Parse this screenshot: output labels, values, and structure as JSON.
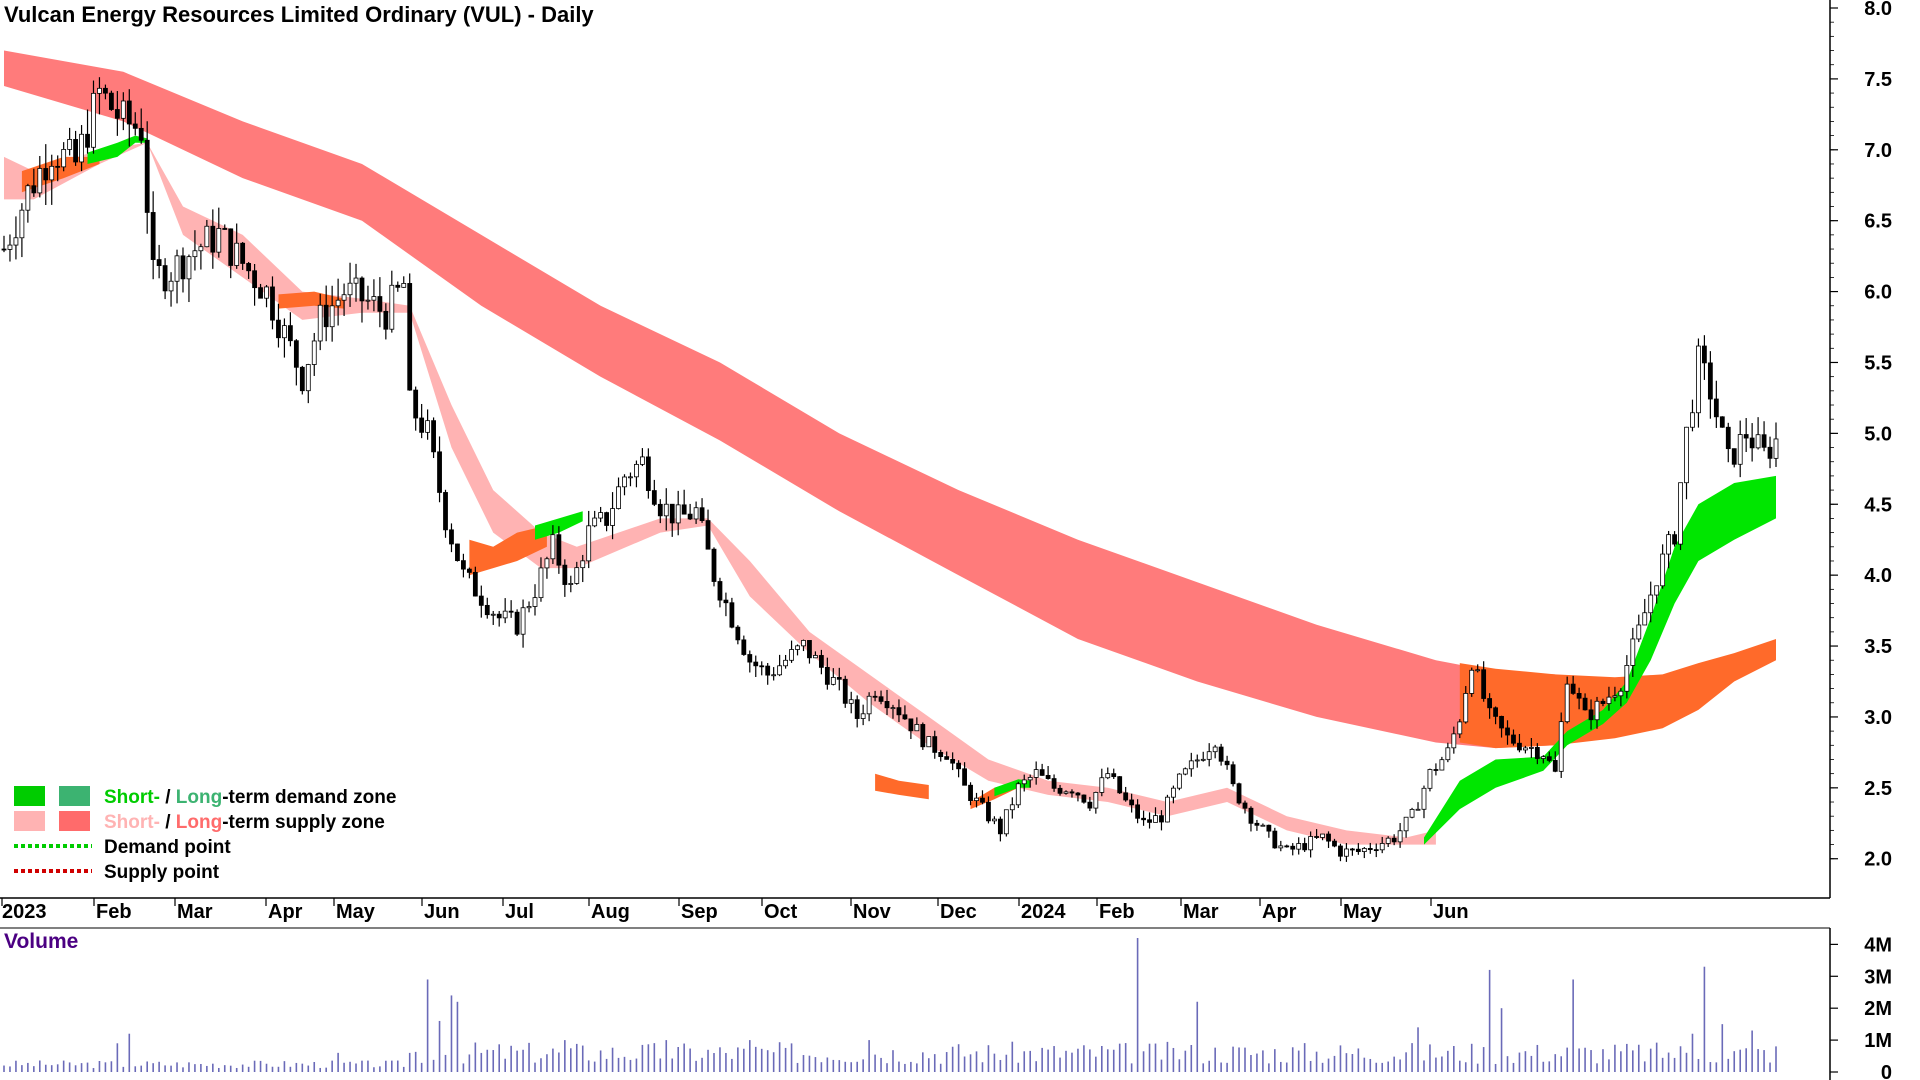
{
  "chart_data": {
    "type": "candlestick",
    "title": "Vulcan Energy Resources Limited Ordinary (VUL) - Daily",
    "price_axis": {
      "ylim": [
        1.85,
        8.0
      ],
      "ticks": [
        "2.0",
        "2.5",
        "3.0",
        "3.5",
        "4.0",
        "4.5",
        "5.0",
        "5.5",
        "6.0",
        "6.5",
        "7.0",
        "7.5",
        "8.0"
      ]
    },
    "x_axis": {
      "labels": [
        "2023",
        "Feb",
        "Mar",
        "Apr",
        "May",
        "Jun",
        "Jul",
        "Aug",
        "Sep",
        "Oct",
        "Nov",
        "Dec",
        "2024",
        "Feb",
        "Mar",
        "Apr",
        "May",
        "Jun"
      ]
    },
    "close_path": [
      [
        0,
        6.3
      ],
      [
        4,
        6.7
      ],
      [
        8,
        7.0
      ],
      [
        12,
        6.9
      ],
      [
        16,
        7.4
      ],
      [
        20,
        7.2
      ],
      [
        23,
        7.15
      ],
      [
        25,
        6.1
      ],
      [
        28,
        6.15
      ],
      [
        32,
        6.3
      ],
      [
        36,
        6.4
      ],
      [
        40,
        6.2
      ],
      [
        44,
        6.0
      ],
      [
        47,
        5.7
      ],
      [
        50,
        5.4
      ],
      [
        53,
        5.8
      ],
      [
        57,
        6.0
      ],
      [
        60,
        5.95
      ],
      [
        64,
        5.85
      ],
      [
        67,
        6.05
      ],
      [
        68,
        5.2
      ],
      [
        71,
        5.0
      ],
      [
        74,
        4.4
      ],
      [
        77,
        4.0
      ],
      [
        80,
        3.85
      ],
      [
        83,
        3.7
      ],
      [
        86,
        3.65
      ],
      [
        89,
        3.9
      ],
      [
        92,
        4.2
      ],
      [
        95,
        3.9
      ],
      [
        98,
        4.3
      ],
      [
        101,
        4.4
      ],
      [
        104,
        4.7
      ],
      [
        107,
        4.8
      ],
      [
        110,
        4.5
      ],
      [
        113,
        4.4
      ],
      [
        116,
        4.45
      ],
      [
        119,
        4.0
      ],
      [
        122,
        3.7
      ],
      [
        125,
        3.4
      ],
      [
        128,
        3.3
      ],
      [
        131,
        3.4
      ],
      [
        134,
        3.5
      ],
      [
        137,
        3.35
      ],
      [
        140,
        3.2
      ],
      [
        143,
        3.0
      ],
      [
        146,
        3.2
      ],
      [
        149,
        3.1
      ],
      [
        152,
        2.95
      ],
      [
        155,
        2.8
      ],
      [
        158,
        2.75
      ],
      [
        161,
        2.5
      ],
      [
        164,
        2.35
      ],
      [
        167,
        2.2
      ],
      [
        170,
        2.5
      ],
      [
        173,
        2.6
      ],
      [
        176,
        2.5
      ],
      [
        179,
        2.5
      ],
      [
        182,
        2.4
      ],
      [
        185,
        2.6
      ],
      [
        188,
        2.4
      ],
      [
        191,
        2.25
      ],
      [
        194,
        2.3
      ],
      [
        197,
        2.55
      ],
      [
        200,
        2.7
      ],
      [
        203,
        2.85
      ],
      [
        206,
        2.5
      ],
      [
        209,
        2.3
      ],
      [
        212,
        2.15
      ],
      [
        215,
        2.05
      ],
      [
        218,
        2.1
      ],
      [
        221,
        2.15
      ],
      [
        224,
        2.05
      ],
      [
        227,
        2.05
      ],
      [
        230,
        2.1
      ],
      [
        233,
        2.15
      ],
      [
        236,
        2.3
      ],
      [
        239,
        2.6
      ],
      [
        242,
        2.75
      ],
      [
        244,
        3.0
      ],
      [
        246,
        3.4
      ],
      [
        249,
        3.0
      ],
      [
        252,
        2.85
      ],
      [
        255,
        2.8
      ],
      [
        258,
        2.75
      ],
      [
        260,
        2.6
      ],
      [
        262,
        3.3
      ],
      [
        265,
        3.0
      ],
      [
        268,
        3.1
      ],
      [
        271,
        3.25
      ],
      [
        274,
        3.6
      ],
      [
        277,
        4.0
      ],
      [
        280,
        4.3
      ],
      [
        282,
        5.0
      ],
      [
        284,
        5.5
      ],
      [
        286,
        5.3
      ],
      [
        289,
        4.8
      ],
      [
        292,
        5.0
      ],
      [
        295,
        4.85
      ],
      [
        297,
        4.95
      ]
    ],
    "volume": {
      "ylim": [
        0,
        4.2
      ],
      "ticks": [
        "4M",
        "3M",
        "2M",
        "1M",
        "0"
      ],
      "spikes": [
        [
          19,
          0.9
        ],
        [
          21,
          1.2
        ],
        [
          56,
          0.6
        ],
        [
          71,
          2.9
        ],
        [
          73,
          1.6
        ],
        [
          75,
          2.4
        ],
        [
          76,
          2.2
        ],
        [
          94,
          1.0
        ],
        [
          111,
          1.0
        ],
        [
          125,
          1.0
        ],
        [
          145,
          1.0
        ],
        [
          190,
          4.2
        ],
        [
          200,
          2.2
        ],
        [
          237,
          1.4
        ],
        [
          249,
          3.2
        ],
        [
          251,
          2.0
        ],
        [
          263,
          2.9
        ],
        [
          283,
          1.2
        ],
        [
          285,
          3.3
        ],
        [
          288,
          1.5
        ],
        [
          293,
          1.3
        ]
      ]
    },
    "zones": [
      {
        "kind": "long-term supply",
        "color": "#ff7b7b",
        "from_bar": 0,
        "to_bar": 297,
        "upper": [
          [
            0,
            7.7
          ],
          [
            20,
            7.55
          ],
          [
            40,
            7.2
          ],
          [
            60,
            6.9
          ],
          [
            80,
            6.4
          ],
          [
            100,
            5.9
          ],
          [
            120,
            5.5
          ],
          [
            140,
            5.0
          ],
          [
            160,
            4.6
          ],
          [
            180,
            4.25
          ],
          [
            200,
            3.95
          ],
          [
            220,
            3.65
          ],
          [
            240,
            3.4
          ],
          [
            250,
            3.32
          ],
          [
            260,
            3.3
          ]
        ],
        "lower": [
          [
            0,
            7.45
          ],
          [
            20,
            7.2
          ],
          [
            40,
            6.8
          ],
          [
            60,
            6.5
          ],
          [
            80,
            5.9
          ],
          [
            100,
            5.4
          ],
          [
            120,
            4.95
          ],
          [
            140,
            4.45
          ],
          [
            160,
            4.0
          ],
          [
            180,
            3.55
          ],
          [
            200,
            3.25
          ],
          [
            220,
            3.0
          ],
          [
            240,
            2.82
          ],
          [
            250,
            2.78
          ],
          [
            260,
            2.8
          ]
        ]
      },
      {
        "kind": "short-term supply",
        "color": "#ffb3b3",
        "upper": [
          [
            0,
            6.95
          ],
          [
            5,
            6.85
          ],
          [
            16,
            7.0
          ],
          [
            24,
            7.05
          ],
          [
            30,
            6.6
          ],
          [
            40,
            6.4
          ],
          [
            50,
            6.0
          ],
          [
            60,
            5.95
          ],
          [
            68,
            5.9
          ],
          [
            75,
            5.2
          ],
          [
            82,
            4.6
          ],
          [
            90,
            4.3
          ],
          [
            96,
            4.2
          ],
          [
            110,
            4.4
          ],
          [
            118,
            4.4
          ],
          [
            125,
            4.1
          ],
          [
            135,
            3.6
          ],
          [
            145,
            3.3
          ],
          [
            155,
            3.0
          ],
          [
            165,
            2.7
          ],
          [
            175,
            2.55
          ],
          [
            185,
            2.5
          ],
          [
            195,
            2.4
          ],
          [
            205,
            2.5
          ],
          [
            215,
            2.3
          ],
          [
            225,
            2.2
          ],
          [
            235,
            2.15
          ],
          [
            240,
            2.2
          ]
        ],
        "lower": [
          [
            0,
            6.65
          ],
          [
            5,
            6.65
          ],
          [
            16,
            6.9
          ],
          [
            24,
            7.05
          ],
          [
            30,
            6.4
          ],
          [
            40,
            6.1
          ],
          [
            50,
            5.8
          ],
          [
            60,
            5.85
          ],
          [
            68,
            5.85
          ],
          [
            75,
            4.9
          ],
          [
            82,
            4.3
          ],
          [
            90,
            4.05
          ],
          [
            96,
            4.05
          ],
          [
            110,
            4.3
          ],
          [
            118,
            4.35
          ],
          [
            125,
            3.85
          ],
          [
            135,
            3.45
          ],
          [
            145,
            3.1
          ],
          [
            155,
            2.8
          ],
          [
            165,
            2.55
          ],
          [
            175,
            2.45
          ],
          [
            185,
            2.4
          ],
          [
            195,
            2.3
          ],
          [
            205,
            2.4
          ],
          [
            215,
            2.2
          ],
          [
            225,
            2.1
          ],
          [
            235,
            2.1
          ],
          [
            240,
            2.1
          ]
        ]
      },
      {
        "kind": "short-term demand",
        "color": "#00e600",
        "upper": [
          [
            238,
            2.15
          ],
          [
            244,
            2.55
          ],
          [
            250,
            2.7
          ],
          [
            258,
            2.72
          ],
          [
            262,
            2.9
          ],
          [
            268,
            3.05
          ],
          [
            272,
            3.25
          ],
          [
            276,
            3.7
          ],
          [
            280,
            4.2
          ],
          [
            284,
            4.5
          ],
          [
            290,
            4.65
          ],
          [
            297,
            4.7
          ]
        ],
        "lower": [
          [
            238,
            2.1
          ],
          [
            244,
            2.35
          ],
          [
            250,
            2.5
          ],
          [
            258,
            2.62
          ],
          [
            262,
            2.8
          ],
          [
            268,
            2.95
          ],
          [
            272,
            3.1
          ],
          [
            276,
            3.4
          ],
          [
            280,
            3.8
          ],
          [
            284,
            4.1
          ],
          [
            290,
            4.25
          ],
          [
            297,
            4.4
          ]
        ]
      }
    ]
  },
  "legend": {
    "demand_zone": {
      "short": "Short-",
      "sep": " / ",
      "long": "Long",
      "rest": "-term demand zone"
    },
    "supply_zone": {
      "short": "Short-",
      "sep": " / ",
      "long": "Long",
      "rest": "-term supply zone"
    },
    "demand_point": "Demand point",
    "supply_point": "Supply point"
  },
  "volume_title": "Volume",
  "colors": {
    "long_supply": "#ff7b7b",
    "short_supply": "#ffb3b3",
    "mixed_zone": "#ff6a2a",
    "short_demand": "#00e600",
    "long_demand": "#3cb371",
    "candle": "#000000",
    "volume_bar": "#6a6ab8",
    "legend_short_demand": "#00cc00",
    "legend_long_demand": "#3cb371",
    "legend_short_supply": "#ffb3b3",
    "legend_long_supply": "#ff6b6b",
    "volume_title": "#4b0082",
    "demand_point": "#00cc00",
    "supply_point": "#d00000"
  }
}
